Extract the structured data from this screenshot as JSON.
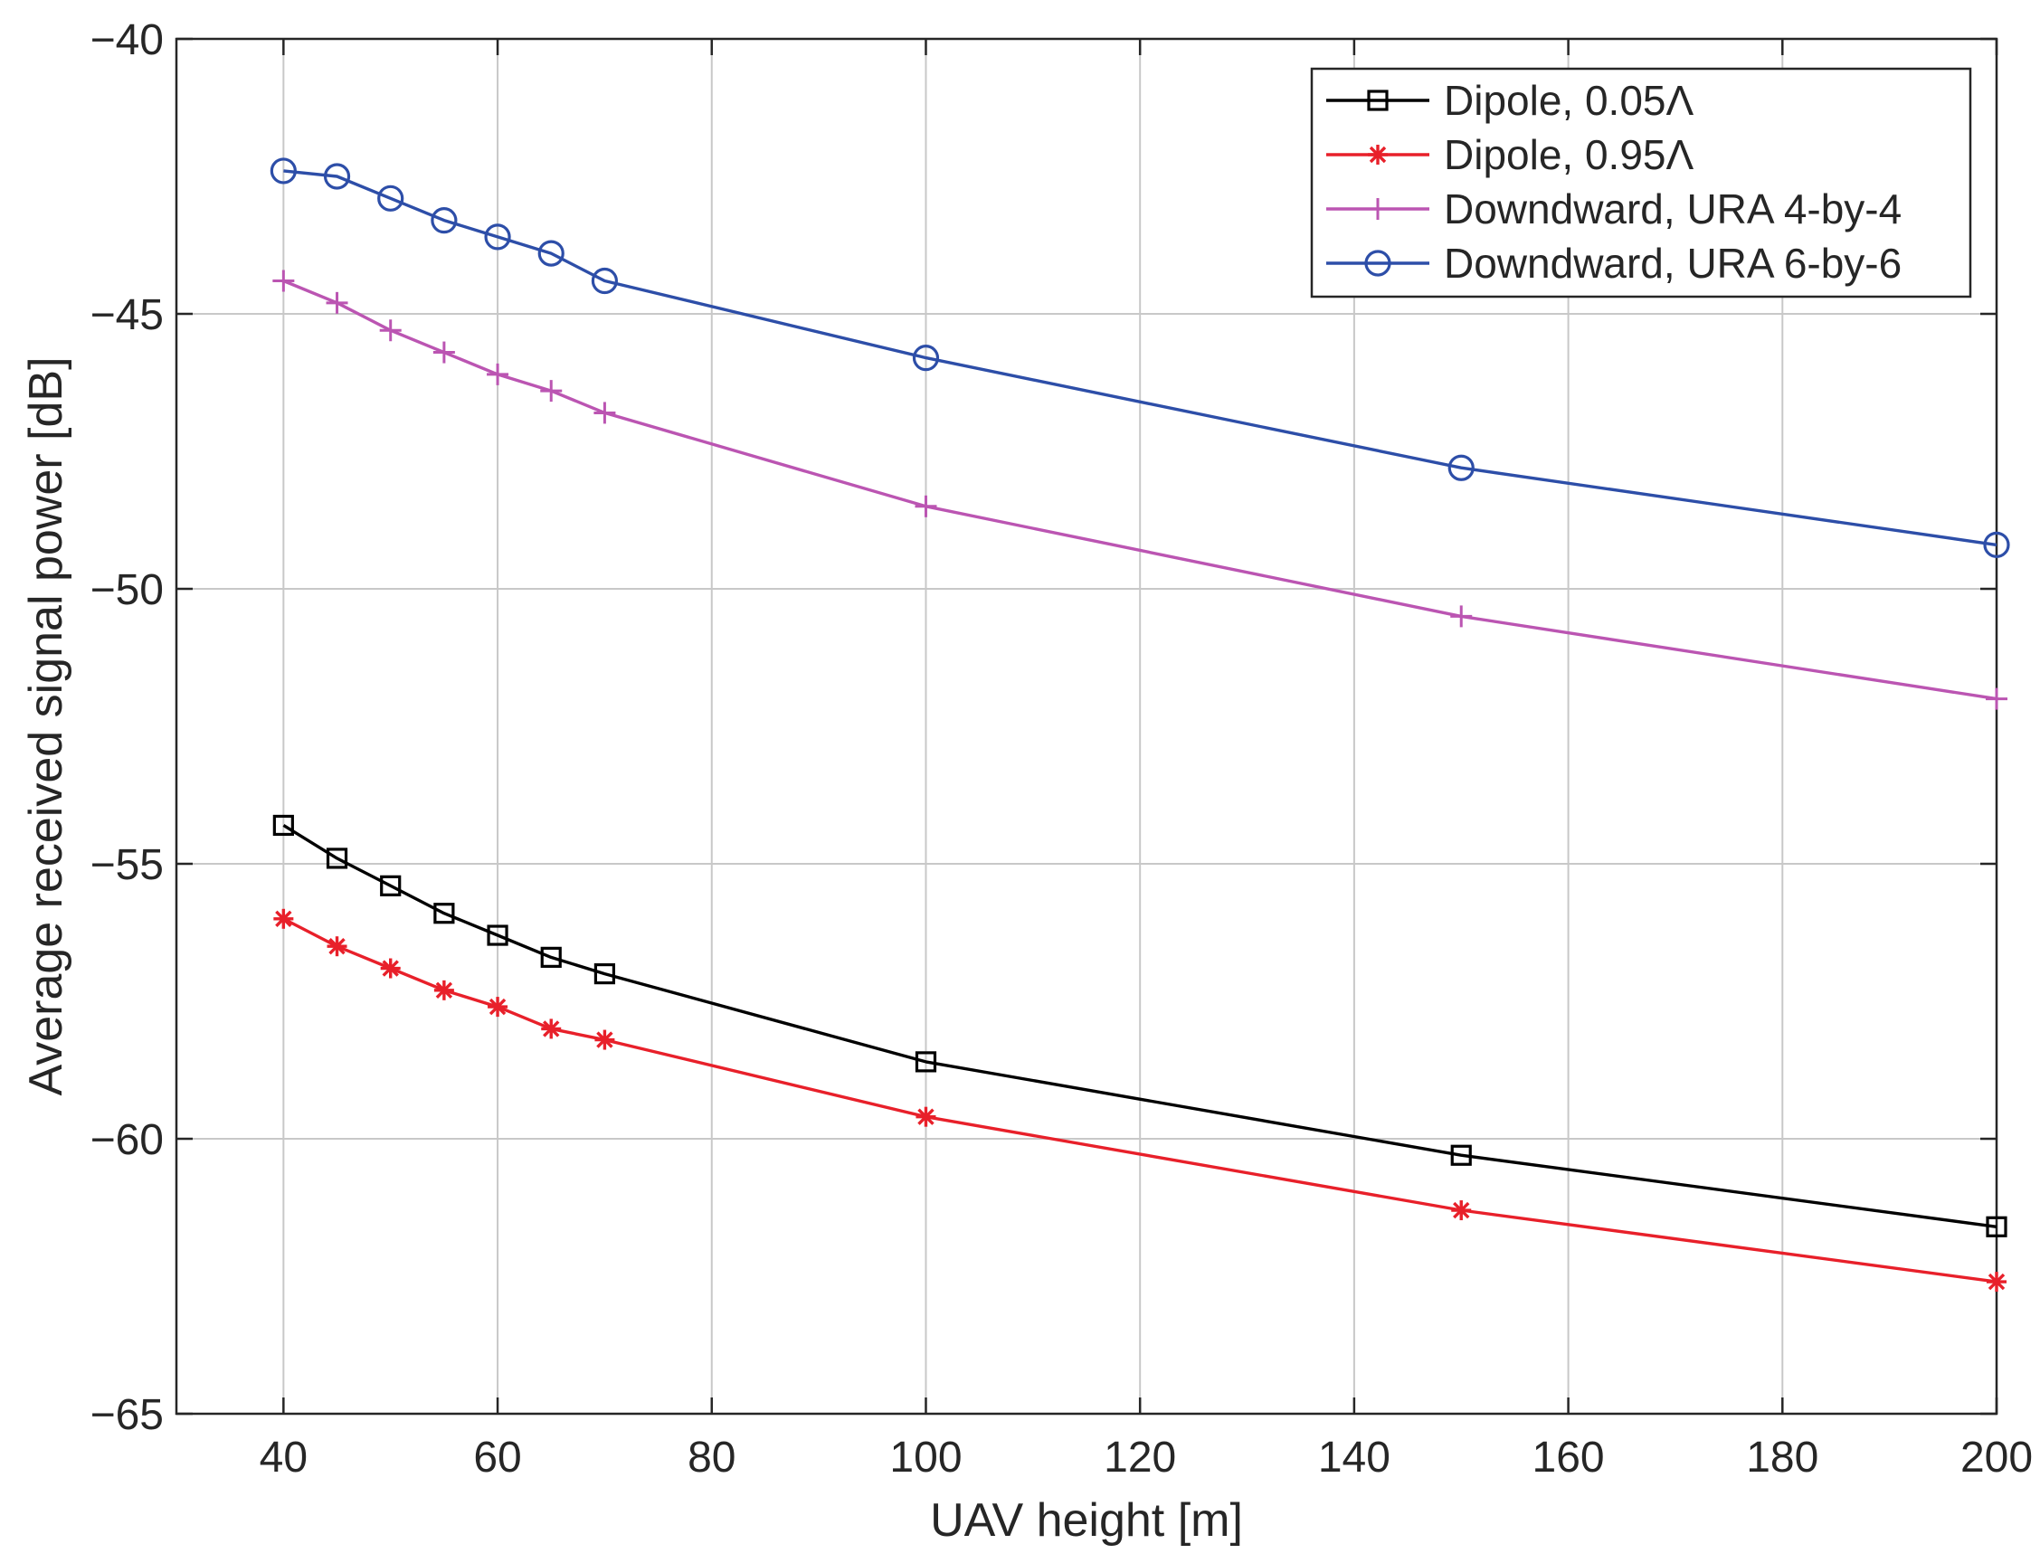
{
  "chart_data": {
    "type": "line",
    "title": "",
    "xlabel": "UAV height [m]",
    "ylabel": "Average received signal power [dB]",
    "xlim": [
      30,
      200
    ],
    "ylim": [
      -65,
      -40
    ],
    "xticks": [
      40,
      60,
      80,
      100,
      120,
      140,
      160,
      180,
      200
    ],
    "yticks": [
      -40,
      -45,
      -50,
      -55,
      -60,
      -65
    ],
    "xtick_labels": [
      "40",
      "60",
      "80",
      "100",
      "120",
      "140",
      "160",
      "180",
      "200"
    ],
    "ytick_labels": [
      "−40",
      "−45",
      "−50",
      "−55",
      "−60",
      "−65"
    ],
    "grid": true,
    "legend_position": "top-right",
    "x": [
      40,
      45,
      50,
      55,
      60,
      65,
      70,
      100,
      150,
      200
    ],
    "series": [
      {
        "name": "Dipole, 0.05Λ",
        "color": "#000000",
        "marker": "square",
        "values": [
          -54.3,
          -54.9,
          -55.4,
          -55.9,
          -56.3,
          -56.7,
          -57.0,
          -58.6,
          -60.3,
          -61.6
        ]
      },
      {
        "name": "Dipole, 0.95Λ",
        "color": "#e8202a",
        "marker": "asterisk",
        "values": [
          -56.0,
          -56.5,
          -56.9,
          -57.3,
          -57.6,
          -58.0,
          -58.2,
          -59.6,
          -61.3,
          -62.6
        ]
      },
      {
        "name": "Downdward, URA 4-by-4",
        "color": "#bb55b2",
        "marker": "plus",
        "values": [
          -44.4,
          -44.8,
          -45.3,
          -45.7,
          -46.1,
          -46.4,
          -46.8,
          -48.5,
          -50.5,
          -52.0
        ]
      },
      {
        "name": "Downdward, URA 6-by-6",
        "color": "#2d4ea8",
        "marker": "circle",
        "values": [
          -42.4,
          -42.5,
          -42.9,
          -43.3,
          -43.6,
          -43.9,
          -44.4,
          -45.8,
          -47.8,
          -49.2
        ]
      }
    ]
  }
}
